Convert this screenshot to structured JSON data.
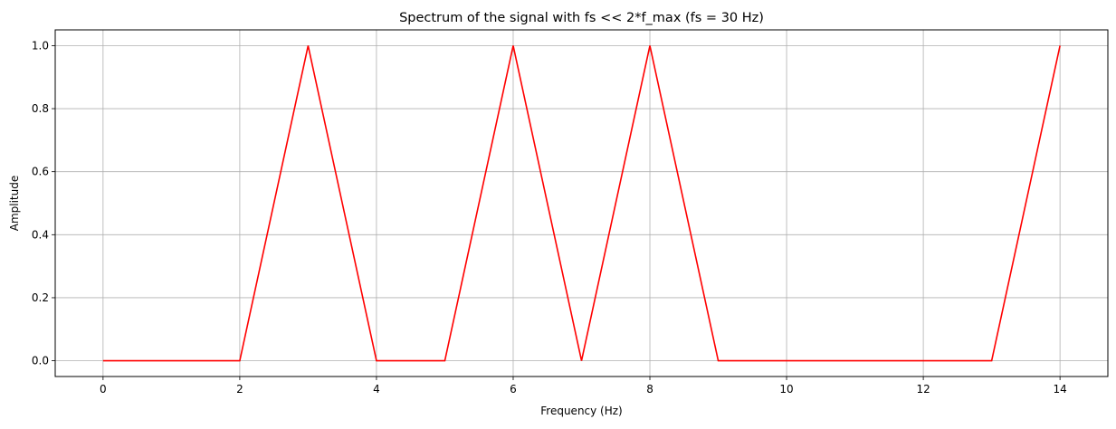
{
  "chart_data": {
    "type": "line",
    "title": "Spectrum of the signal with fs << 2*f_max (fs = 30 Hz)",
    "xlabel": "Frequency (Hz)",
    "ylabel": "Amplitude",
    "xlim": [
      -0.7,
      14.7
    ],
    "ylim": [
      -0.05,
      1.05
    ],
    "xticks": [
      0,
      2,
      4,
      6,
      8,
      10,
      12,
      14
    ],
    "yticks": [
      0.0,
      0.2,
      0.4,
      0.6,
      0.8,
      1.0
    ],
    "xtick_labels": [
      "0",
      "2",
      "4",
      "6",
      "8",
      "10",
      "12",
      "14"
    ],
    "ytick_labels": [
      "0.0",
      "0.2",
      "0.4",
      "0.6",
      "0.8",
      "1.0"
    ],
    "grid": true,
    "series": [
      {
        "color": "#ff0000",
        "x": [
          0,
          1,
          2,
          3,
          4,
          5,
          6,
          7,
          8,
          9,
          10,
          11,
          12,
          13,
          14
        ],
        "y": [
          0,
          0,
          0,
          1,
          0,
          0,
          1,
          0,
          1,
          0,
          0,
          0,
          0,
          0,
          1
        ]
      }
    ]
  }
}
